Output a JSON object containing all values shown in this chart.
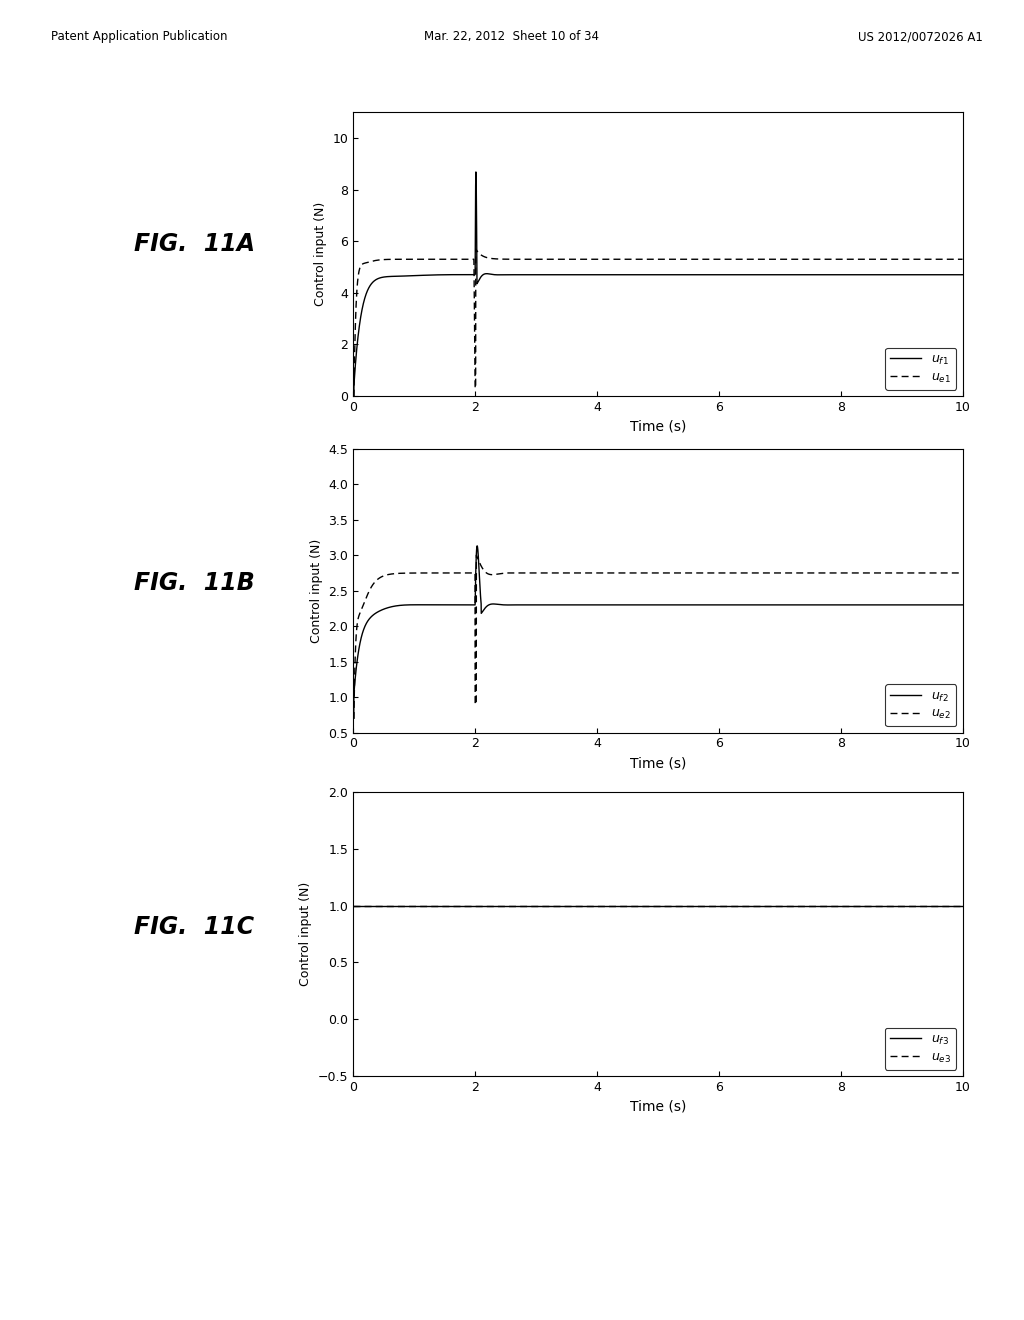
{
  "header_left": "Patent Application Publication",
  "header_center": "Mar. 22, 2012  Sheet 10 of 34",
  "header_right": "US 2012/0072026 A1",
  "background_color": "#ffffff",
  "plots": [
    {
      "fig_label": "FIG.  11A",
      "ylabel": "Control input (N)",
      "xlabel": "Time (s)",
      "xlim": [
        0,
        10
      ],
      "ylim": [
        0,
        11
      ],
      "yticks": [
        0,
        2,
        4,
        6,
        8,
        10
      ],
      "xticks": [
        0,
        2,
        4,
        6,
        8,
        10
      ],
      "legend": [
        {
          "label": "u_f1",
          "style": "solid"
        },
        {
          "label": "u_e1",
          "style": "dashed"
        }
      ]
    },
    {
      "fig_label": "FIG.  11B",
      "ylabel": "Control input (N)",
      "xlabel": "Time (s)",
      "xlim": [
        0,
        10
      ],
      "ylim": [
        0.5,
        4.5
      ],
      "yticks": [
        0.5,
        1.0,
        1.5,
        2.0,
        2.5,
        3.0,
        3.5,
        4.0,
        4.5
      ],
      "xticks": [
        0,
        2,
        4,
        6,
        8,
        10
      ],
      "legend": [
        {
          "label": "u_f2",
          "style": "solid"
        },
        {
          "label": "u_e2",
          "style": "dashed"
        }
      ]
    },
    {
      "fig_label": "FIG.  11C",
      "ylabel": "Control input (N)",
      "xlabel": "Time (s)",
      "xlim": [
        0,
        10
      ],
      "ylim": [
        -0.5,
        2
      ],
      "yticks": [
        -0.5,
        0.0,
        0.5,
        1.0,
        1.5,
        2.0
      ],
      "xticks": [
        0,
        2,
        4,
        6,
        8,
        10
      ],
      "legend": [
        {
          "label": "u_f3",
          "style": "solid"
        },
        {
          "label": "u_e3",
          "style": "dashed"
        }
      ]
    }
  ]
}
